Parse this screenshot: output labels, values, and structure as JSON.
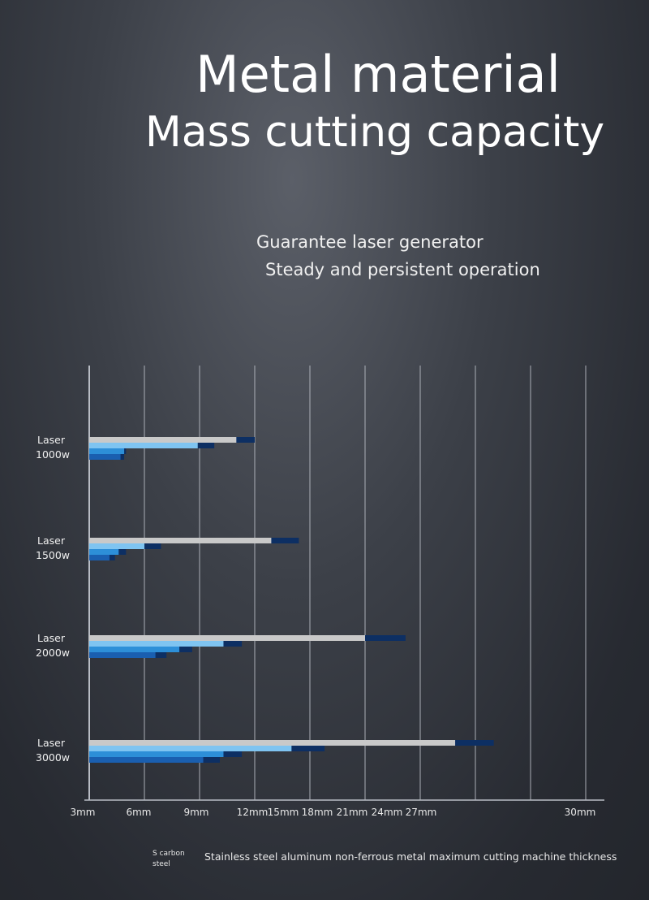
{
  "header": {
    "title_line1": "Metal material",
    "title_line2": "Mass cutting capacity",
    "subtitle_line1": "Guarantee laser generator",
    "subtitle_line2": "Steady and persistent operation"
  },
  "legend": {
    "carbon_label": "S carbon steel",
    "main_label": "Stainless steel aluminum non-ferrous metal maximum cutting machine thickness"
  },
  "colors": {
    "carbon": "#c9c9c9",
    "stainless": "#7fc4f1",
    "aluminum": "#2d8fd8",
    "nonferrous": "#1a5fb0",
    "extension": "#0d2f63",
    "grid": "#b8bcc4"
  },
  "chart_data": {
    "type": "bar",
    "orientation": "horizontal",
    "unit": "mm",
    "x_tick_labels": [
      "3mm",
      "6mm",
      "9mm",
      "12mm",
      "15mm",
      "18mm",
      "21mm",
      "24mm",
      "27mm",
      "30mm"
    ],
    "xlim": [
      3,
      31
    ],
    "grid": true,
    "categories": [
      "Laser 1000w",
      "Laser 1500w",
      "Laser 2000w",
      "Laser 3000w"
    ],
    "category_lines": [
      [
        "Laser",
        "1000w"
      ],
      [
        "Laser",
        "1500w"
      ],
      [
        "Laser",
        "2000w"
      ],
      [
        "Laser",
        "3000w"
      ]
    ],
    "series": [
      {
        "key": "carbon",
        "values": [
          11,
          12.9,
          18,
          22.9
        ],
        "extended": [
          12,
          14.4,
          20.2,
          25
        ]
      },
      {
        "key": "stainless",
        "values": [
          8.9,
          6,
          10.3,
          14
        ],
        "extended": [
          9.8,
          6.9,
          11.3,
          15.8
        ]
      },
      {
        "key": "aluminum",
        "values": [
          4.9,
          4.6,
          7.9,
          10.3
        ],
        "extended": [
          5,
          5,
          8.6,
          11.3
        ]
      },
      {
        "key": "nonferrous",
        "values": [
          4.7,
          4.1,
          6.6,
          9.2
        ],
        "extended": [
          4.9,
          4.4,
          7.2,
          10.1
        ]
      }
    ]
  }
}
